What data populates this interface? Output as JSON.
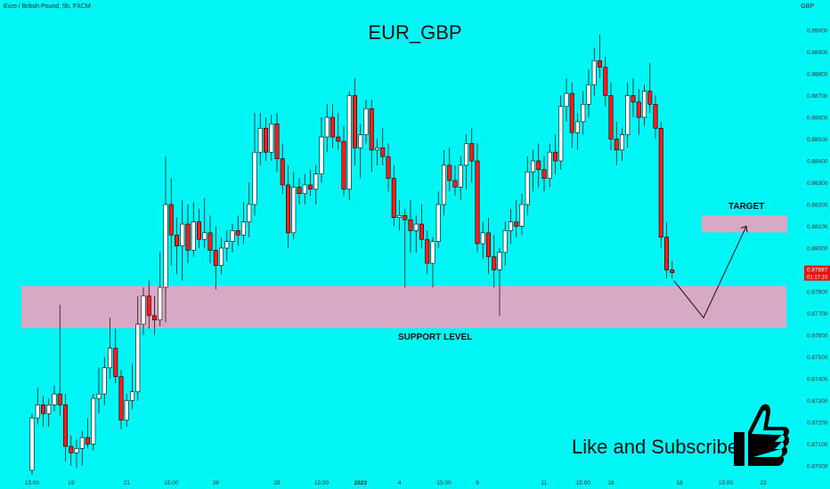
{
  "header": {
    "symbol": "Euro / British Pound, 5h, FXCM",
    "currency": "GBP",
    "title": "EUR_GBP"
  },
  "annotations": {
    "support": "SUPPORT LEVEL",
    "target": "TARGET",
    "cta": "Like and Subscribe"
  },
  "price_label": {
    "value": "0.87887",
    "sub": "01:17:10"
  },
  "colors": {
    "background": "#00f5f5",
    "bull": "#ffffff",
    "bear": "#ff1a1a",
    "wick": "#000000",
    "zone": "#d8a9c4",
    "axis_text": "#333333"
  },
  "chart_data": {
    "type": "candlestick",
    "title": "EUR_GBP",
    "ylim": [
      0.8695,
      0.8902
    ],
    "yticks": [
      "0.89000",
      "0.88900",
      "0.88800",
      "0.88700",
      "0.88600",
      "0.88500",
      "0.88400",
      "0.88300",
      "0.88200",
      "0.88100",
      "0.88000",
      "0.87900",
      "0.87800",
      "0.87700",
      "0.87600",
      "0.87500",
      "0.87400",
      "0.87300",
      "0.87200",
      "0.87100",
      "0.87000"
    ],
    "xticks": [
      {
        "label": "15:00",
        "i": 0
      },
      {
        "label": "19",
        "i": 7
      },
      {
        "label": "21",
        "i": 17
      },
      {
        "label": "15:00",
        "i": 25
      },
      {
        "label": "26",
        "i": 33
      },
      {
        "label": "28",
        "i": 44
      },
      {
        "label": "15:00",
        "i": 52
      },
      {
        "label": "2023",
        "i": 59
      },
      {
        "label": "4",
        "i": 66
      },
      {
        "label": "15:00",
        "i": 74
      },
      {
        "label": "9",
        "i": 80
      },
      {
        "label": "11",
        "i": 92
      },
      {
        "label": "15:00",
        "i": 99
      },
      {
        "label": "16",
        "i": 104
      }
    ],
    "xticks_future": [
      "18",
      "15:00",
      "23"
    ],
    "support_zone": [
      0.87632,
      0.87826
    ],
    "target_zone": [
      0.88072,
      0.8815
    ],
    "projection": [
      0.8785,
      0.8768,
      0.881
    ],
    "candles": [
      {
        "o": 0.8698,
        "h": 0.8724,
        "l": 0.8696,
        "c": 0.8722
      },
      {
        "o": 0.8722,
        "h": 0.8736,
        "l": 0.8719,
        "c": 0.8728
      },
      {
        "o": 0.8728,
        "h": 0.8732,
        "l": 0.8718,
        "c": 0.8724
      },
      {
        "o": 0.8724,
        "h": 0.8731,
        "l": 0.8718,
        "c": 0.8728
      },
      {
        "o": 0.8728,
        "h": 0.8737,
        "l": 0.8725,
        "c": 0.8733
      },
      {
        "o": 0.8733,
        "h": 0.8774,
        "l": 0.8723,
        "c": 0.8728
      },
      {
        "o": 0.8728,
        "h": 0.8733,
        "l": 0.8702,
        "c": 0.8709
      },
      {
        "o": 0.8709,
        "h": 0.8714,
        "l": 0.87,
        "c": 0.8706
      },
      {
        "o": 0.8706,
        "h": 0.8712,
        "l": 0.8699,
        "c": 0.8708
      },
      {
        "o": 0.8708,
        "h": 0.8716,
        "l": 0.87,
        "c": 0.8713
      },
      {
        "o": 0.8713,
        "h": 0.8722,
        "l": 0.8708,
        "c": 0.871
      },
      {
        "o": 0.871,
        "h": 0.8733,
        "l": 0.8707,
        "c": 0.8731
      },
      {
        "o": 0.8731,
        "h": 0.8745,
        "l": 0.8724,
        "c": 0.8733
      },
      {
        "o": 0.8733,
        "h": 0.875,
        "l": 0.8728,
        "c": 0.8745
      },
      {
        "o": 0.8745,
        "h": 0.8768,
        "l": 0.874,
        "c": 0.8754
      },
      {
        "o": 0.8754,
        "h": 0.8763,
        "l": 0.8738,
        "c": 0.8741
      },
      {
        "o": 0.8741,
        "h": 0.8744,
        "l": 0.8717,
        "c": 0.8721
      },
      {
        "o": 0.8721,
        "h": 0.8733,
        "l": 0.8718,
        "c": 0.873
      },
      {
        "o": 0.873,
        "h": 0.8747,
        "l": 0.8726,
        "c": 0.8734
      },
      {
        "o": 0.8734,
        "h": 0.8778,
        "l": 0.873,
        "c": 0.8765
      },
      {
        "o": 0.8765,
        "h": 0.8782,
        "l": 0.876,
        "c": 0.8778
      },
      {
        "o": 0.8778,
        "h": 0.8785,
        "l": 0.8763,
        "c": 0.8769
      },
      {
        "o": 0.8769,
        "h": 0.8778,
        "l": 0.876,
        "c": 0.8767
      },
      {
        "o": 0.8767,
        "h": 0.8798,
        "l": 0.8764,
        "c": 0.8782
      },
      {
        "o": 0.8782,
        "h": 0.8842,
        "l": 0.8766,
        "c": 0.882
      },
      {
        "o": 0.882,
        "h": 0.8832,
        "l": 0.8792,
        "c": 0.8806
      },
      {
        "o": 0.8806,
        "h": 0.8814,
        "l": 0.8788,
        "c": 0.8801
      },
      {
        "o": 0.8801,
        "h": 0.8822,
        "l": 0.8785,
        "c": 0.8811
      },
      {
        "o": 0.8811,
        "h": 0.882,
        "l": 0.8793,
        "c": 0.8799
      },
      {
        "o": 0.8799,
        "h": 0.8821,
        "l": 0.8796,
        "c": 0.8812
      },
      {
        "o": 0.8812,
        "h": 0.8818,
        "l": 0.88,
        "c": 0.8804
      },
      {
        "o": 0.8804,
        "h": 0.8823,
        "l": 0.88,
        "c": 0.8807
      },
      {
        "o": 0.8807,
        "h": 0.8815,
        "l": 0.8793,
        "c": 0.8799
      },
      {
        "o": 0.8799,
        "h": 0.881,
        "l": 0.8781,
        "c": 0.8792
      },
      {
        "o": 0.8792,
        "h": 0.8805,
        "l": 0.8788,
        "c": 0.88
      },
      {
        "o": 0.88,
        "h": 0.8808,
        "l": 0.8794,
        "c": 0.8803
      },
      {
        "o": 0.8803,
        "h": 0.8811,
        "l": 0.8798,
        "c": 0.8808
      },
      {
        "o": 0.8808,
        "h": 0.8815,
        "l": 0.8801,
        "c": 0.8806
      },
      {
        "o": 0.8806,
        "h": 0.8821,
        "l": 0.8802,
        "c": 0.8812
      },
      {
        "o": 0.8812,
        "h": 0.883,
        "l": 0.8805,
        "c": 0.882
      },
      {
        "o": 0.882,
        "h": 0.8862,
        "l": 0.8815,
        "c": 0.8844
      },
      {
        "o": 0.8844,
        "h": 0.8862,
        "l": 0.8838,
        "c": 0.8855
      },
      {
        "o": 0.8855,
        "h": 0.886,
        "l": 0.884,
        "c": 0.8844
      },
      {
        "o": 0.8844,
        "h": 0.8861,
        "l": 0.884,
        "c": 0.8857
      },
      {
        "o": 0.8857,
        "h": 0.8862,
        "l": 0.8835,
        "c": 0.8841
      },
      {
        "o": 0.8841,
        "h": 0.8848,
        "l": 0.8825,
        "c": 0.8829
      },
      {
        "o": 0.8829,
        "h": 0.8838,
        "l": 0.88,
        "c": 0.8807
      },
      {
        "o": 0.8807,
        "h": 0.8835,
        "l": 0.8804,
        "c": 0.8828
      },
      {
        "o": 0.8828,
        "h": 0.8832,
        "l": 0.882,
        "c": 0.8825
      },
      {
        "o": 0.8825,
        "h": 0.8834,
        "l": 0.882,
        "c": 0.8829
      },
      {
        "o": 0.8829,
        "h": 0.8836,
        "l": 0.8824,
        "c": 0.8827
      },
      {
        "o": 0.8827,
        "h": 0.8838,
        "l": 0.882,
        "c": 0.8834
      },
      {
        "o": 0.8834,
        "h": 0.886,
        "l": 0.883,
        "c": 0.8851
      },
      {
        "o": 0.8851,
        "h": 0.8866,
        "l": 0.8844,
        "c": 0.886
      },
      {
        "o": 0.886,
        "h": 0.8866,
        "l": 0.8846,
        "c": 0.8851
      },
      {
        "o": 0.8851,
        "h": 0.8862,
        "l": 0.8845,
        "c": 0.8849
      },
      {
        "o": 0.8849,
        "h": 0.8856,
        "l": 0.8824,
        "c": 0.8827
      },
      {
        "o": 0.8827,
        "h": 0.8872,
        "l": 0.8822,
        "c": 0.887
      },
      {
        "o": 0.887,
        "h": 0.8878,
        "l": 0.8838,
        "c": 0.8846
      },
      {
        "o": 0.8846,
        "h": 0.8857,
        "l": 0.8832,
        "c": 0.8852
      },
      {
        "o": 0.8852,
        "h": 0.8868,
        "l": 0.8848,
        "c": 0.8864
      },
      {
        "o": 0.8864,
        "h": 0.8868,
        "l": 0.8835,
        "c": 0.8845
      },
      {
        "o": 0.8845,
        "h": 0.885,
        "l": 0.8838,
        "c": 0.8846
      },
      {
        "o": 0.8846,
        "h": 0.8855,
        "l": 0.8838,
        "c": 0.8842
      },
      {
        "o": 0.8842,
        "h": 0.8848,
        "l": 0.8826,
        "c": 0.8832
      },
      {
        "o": 0.8832,
        "h": 0.8838,
        "l": 0.881,
        "c": 0.8814
      },
      {
        "o": 0.8814,
        "h": 0.8822,
        "l": 0.8808,
        "c": 0.8815
      },
      {
        "o": 0.8815,
        "h": 0.8818,
        "l": 0.8782,
        "c": 0.8813
      },
      {
        "o": 0.8813,
        "h": 0.8822,
        "l": 0.8798,
        "c": 0.8808
      },
      {
        "o": 0.8808,
        "h": 0.8815,
        "l": 0.8798,
        "c": 0.8811
      },
      {
        "o": 0.8811,
        "h": 0.882,
        "l": 0.88,
        "c": 0.8804
      },
      {
        "o": 0.8804,
        "h": 0.8808,
        "l": 0.8788,
        "c": 0.8793
      },
      {
        "o": 0.8793,
        "h": 0.8805,
        "l": 0.8782,
        "c": 0.8803
      },
      {
        "o": 0.8803,
        "h": 0.8826,
        "l": 0.88,
        "c": 0.882
      },
      {
        "o": 0.882,
        "h": 0.8845,
        "l": 0.8815,
        "c": 0.8838
      },
      {
        "o": 0.8838,
        "h": 0.8846,
        "l": 0.8826,
        "c": 0.8831
      },
      {
        "o": 0.8831,
        "h": 0.8838,
        "l": 0.8824,
        "c": 0.8828
      },
      {
        "o": 0.8828,
        "h": 0.8842,
        "l": 0.8822,
        "c": 0.8838
      },
      {
        "o": 0.8838,
        "h": 0.8852,
        "l": 0.8827,
        "c": 0.8848
      },
      {
        "o": 0.8848,
        "h": 0.8855,
        "l": 0.883,
        "c": 0.884
      },
      {
        "o": 0.884,
        "h": 0.8848,
        "l": 0.8798,
        "c": 0.8802
      },
      {
        "o": 0.8802,
        "h": 0.8812,
        "l": 0.8795,
        "c": 0.8807
      },
      {
        "o": 0.8807,
        "h": 0.8814,
        "l": 0.8788,
        "c": 0.8796
      },
      {
        "o": 0.8796,
        "h": 0.8806,
        "l": 0.8782,
        "c": 0.879
      },
      {
        "o": 0.879,
        "h": 0.88,
        "l": 0.8769,
        "c": 0.8798
      },
      {
        "o": 0.8798,
        "h": 0.8812,
        "l": 0.8792,
        "c": 0.8808
      },
      {
        "o": 0.8808,
        "h": 0.8818,
        "l": 0.8802,
        "c": 0.8812
      },
      {
        "o": 0.8812,
        "h": 0.8822,
        "l": 0.8805,
        "c": 0.881
      },
      {
        "o": 0.881,
        "h": 0.8825,
        "l": 0.8806,
        "c": 0.882
      },
      {
        "o": 0.882,
        "h": 0.8842,
        "l": 0.8815,
        "c": 0.8835
      },
      {
        "o": 0.8835,
        "h": 0.8845,
        "l": 0.8826,
        "c": 0.884
      },
      {
        "o": 0.884,
        "h": 0.8848,
        "l": 0.8828,
        "c": 0.8836
      },
      {
        "o": 0.8836,
        "h": 0.8842,
        "l": 0.8826,
        "c": 0.8832
      },
      {
        "o": 0.8832,
        "h": 0.8848,
        "l": 0.8828,
        "c": 0.8844
      },
      {
        "o": 0.8844,
        "h": 0.8852,
        "l": 0.8834,
        "c": 0.884
      },
      {
        "o": 0.884,
        "h": 0.887,
        "l": 0.8836,
        "c": 0.8865
      },
      {
        "o": 0.8865,
        "h": 0.8878,
        "l": 0.8858,
        "c": 0.8871
      },
      {
        "o": 0.8871,
        "h": 0.8876,
        "l": 0.8846,
        "c": 0.8853
      },
      {
        "o": 0.8853,
        "h": 0.8862,
        "l": 0.8845,
        "c": 0.8858
      },
      {
        "o": 0.8858,
        "h": 0.8872,
        "l": 0.8852,
        "c": 0.8866
      },
      {
        "o": 0.8866,
        "h": 0.8882,
        "l": 0.886,
        "c": 0.8875
      },
      {
        "o": 0.8875,
        "h": 0.8892,
        "l": 0.887,
        "c": 0.8886
      },
      {
        "o": 0.8886,
        "h": 0.8898,
        "l": 0.8878,
        "c": 0.8883
      },
      {
        "o": 0.8883,
        "h": 0.8888,
        "l": 0.8865,
        "c": 0.887
      },
      {
        "o": 0.887,
        "h": 0.8876,
        "l": 0.8845,
        "c": 0.885
      },
      {
        "o": 0.885,
        "h": 0.8858,
        "l": 0.8838,
        "c": 0.8845
      },
      {
        "o": 0.8845,
        "h": 0.8855,
        "l": 0.884,
        "c": 0.8852
      },
      {
        "o": 0.8852,
        "h": 0.8876,
        "l": 0.8846,
        "c": 0.887
      },
      {
        "o": 0.887,
        "h": 0.8878,
        "l": 0.886,
        "c": 0.8867
      },
      {
        "o": 0.8867,
        "h": 0.8873,
        "l": 0.8852,
        "c": 0.886
      },
      {
        "o": 0.886,
        "h": 0.8875,
        "l": 0.8856,
        "c": 0.8872
      },
      {
        "o": 0.8872,
        "h": 0.8885,
        "l": 0.8862,
        "c": 0.8866
      },
      {
        "o": 0.8866,
        "h": 0.887,
        "l": 0.885,
        "c": 0.8855
      },
      {
        "o": 0.8855,
        "h": 0.8858,
        "l": 0.88,
        "c": 0.8805
      },
      {
        "o": 0.8805,
        "h": 0.8812,
        "l": 0.8786,
        "c": 0.879
      },
      {
        "o": 0.879,
        "h": 0.8794,
        "l": 0.8786,
        "c": 0.87887
      }
    ]
  }
}
